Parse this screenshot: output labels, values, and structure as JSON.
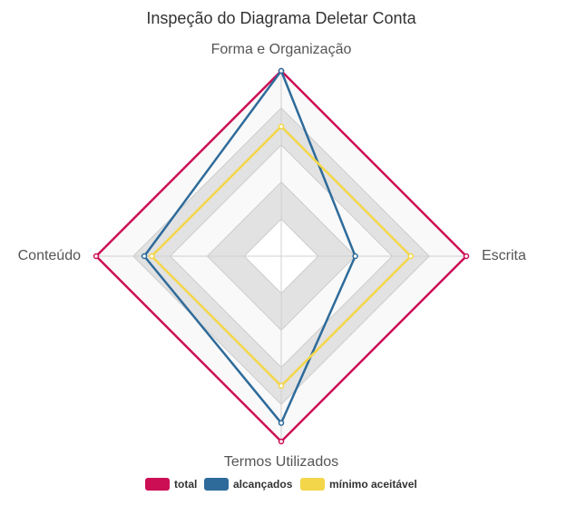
{
  "chart_data": {
    "type": "radar",
    "title": "Inspeção do Diagrama Deletar Conta",
    "axes": [
      "Forma e Organização",
      "Escrita",
      "Termos Utilizados",
      "Conteúdo"
    ],
    "scale": {
      "min": 0,
      "max": 5
    },
    "bands": [
      {
        "from": 0,
        "to": 1,
        "color": "#ffffff"
      },
      {
        "from": 1,
        "to": 2,
        "color": "#e2e2e2"
      },
      {
        "from": 2,
        "to": 3,
        "color": "#f9f9f9"
      },
      {
        "from": 3,
        "to": 4,
        "color": "#e2e2e2"
      },
      {
        "from": 4,
        "to": 5,
        "color": "#f9f9f9"
      }
    ],
    "series": [
      {
        "name": "total",
        "values": [
          5,
          5,
          5,
          5
        ],
        "color": "#cc0e55"
      },
      {
        "name": "alcançados",
        "values": [
          5,
          2,
          4.5,
          3.7
        ],
        "color": "#2e6b9a"
      },
      {
        "name": "mínimo aceitável",
        "values": [
          3.5,
          3.5,
          3.5,
          3.5
        ],
        "color": "#f4d64a"
      }
    ],
    "legend_position": "bottom"
  }
}
